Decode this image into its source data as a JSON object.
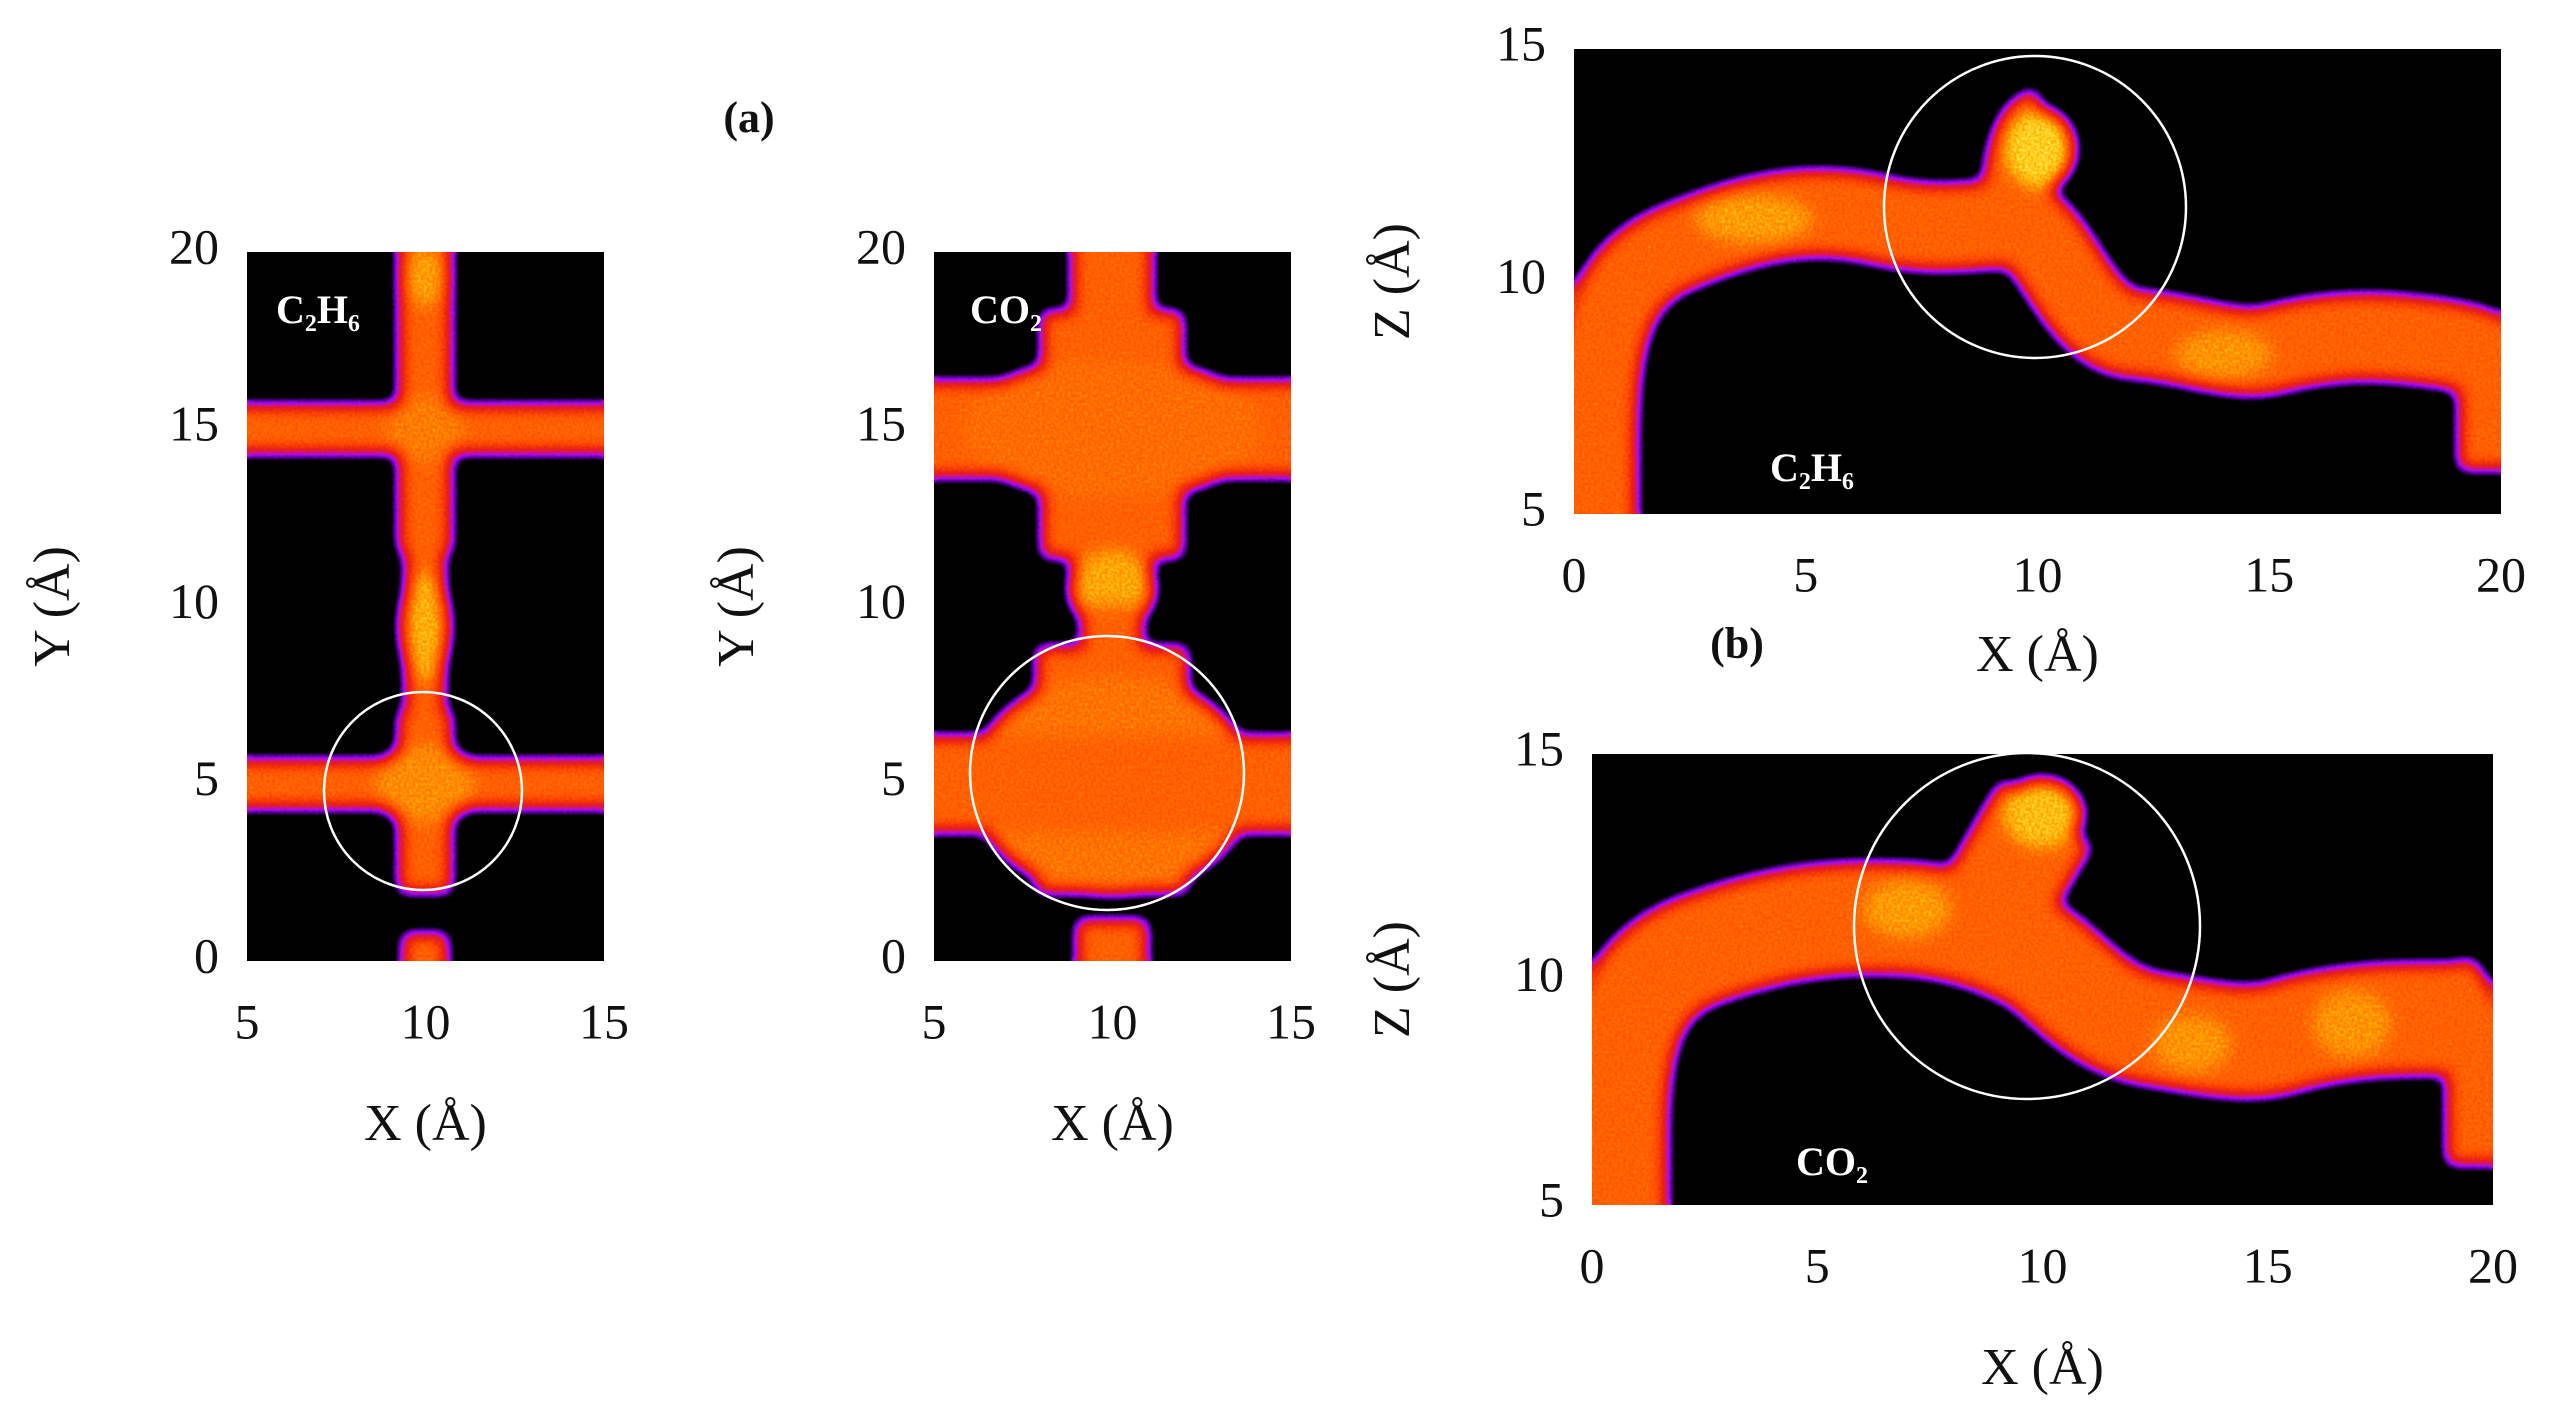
{
  "panel_labels": [
    "(a)",
    "(b)"
  ],
  "chart_data": [
    {
      "type": "density",
      "label": "C₂H₆",
      "xlabel": "X (Å)",
      "ylabel": "Y (Å)",
      "xlim": [
        5,
        15
      ],
      "ylim": [
        0,
        20
      ],
      "xticks": [
        5,
        10,
        15
      ],
      "yticks": [
        0,
        5,
        10,
        15,
        20
      ]
    },
    {
      "type": "density",
      "label": "CO₂",
      "xlabel": "X (Å)",
      "ylabel": "Y (Å)",
      "xlim": [
        5,
        15
      ],
      "ylim": [
        0,
        20
      ],
      "xticks": [
        5,
        10,
        15
      ],
      "yticks": [
        0,
        5,
        10,
        15,
        20
      ]
    },
    {
      "type": "density",
      "label": "C₂H₆",
      "xlabel": "X (Å)",
      "ylabel": "Z (Å)",
      "xlim": [
        0,
        20
      ],
      "ylim": [
        5,
        15
      ],
      "xticks": [
        0,
        5,
        10,
        15,
        20
      ],
      "yticks": [
        5,
        10,
        15
      ]
    },
    {
      "type": "density",
      "label": "CO₂",
      "xlabel": "X (Å)",
      "ylabel": "Z (Å)",
      "xlim": [
        0,
        20
      ],
      "ylim": [
        5,
        15
      ],
      "xticks": [
        0,
        5,
        10,
        15,
        20
      ],
      "yticks": [
        5,
        10,
        15
      ]
    }
  ]
}
